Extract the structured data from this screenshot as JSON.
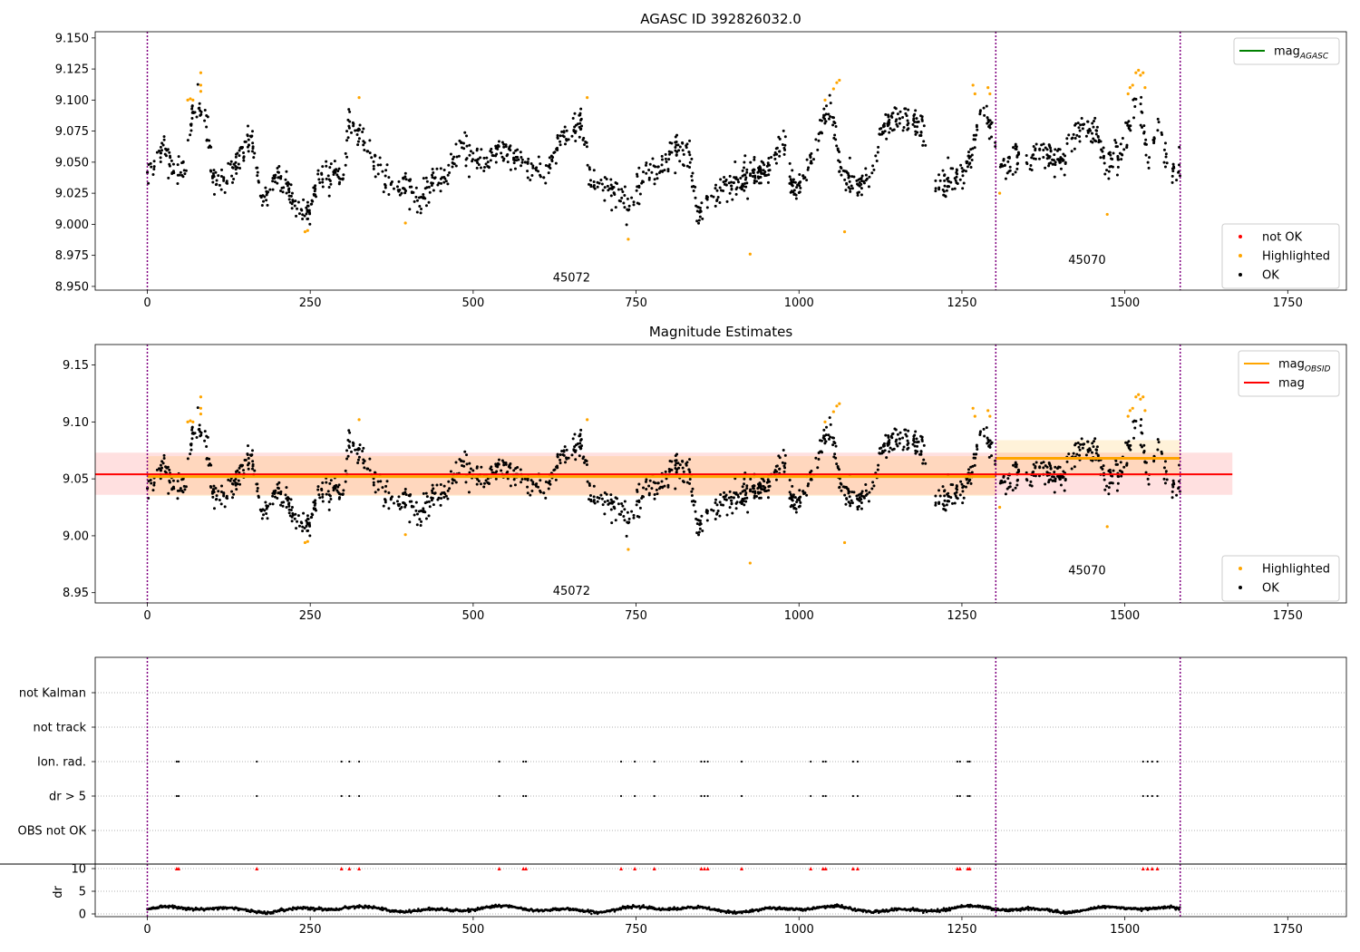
{
  "figure": {
    "panels": [
      {
        "id": "p1",
        "title": "AGASC ID 392826032.0",
        "xlim": [
          -80,
          1840
        ],
        "ylim": [
          8.947,
          9.155
        ],
        "yticks": [
          8.95,
          8.975,
          9.0,
          9.025,
          9.05,
          9.075,
          9.1,
          9.125,
          9.15
        ],
        "ytick_labels": [
          "8.950",
          "8.975",
          "9.000",
          "9.025",
          "9.050",
          "9.075",
          "9.100",
          "9.125",
          "9.150"
        ],
        "xticks": [
          0,
          250,
          500,
          750,
          1000,
          1250,
          1500,
          1750
        ],
        "xtick_labels": [
          "0",
          "250",
          "500",
          "750",
          "1000",
          "1250",
          "1500",
          "1750"
        ],
        "obsid_labels": [
          {
            "text": "45072",
            "x": 651,
            "y": 8.954
          },
          {
            "text": "45070",
            "x": 1442,
            "y": 8.968
          }
        ],
        "legend_top": {
          "entries": [
            {
              "label": "mag",
              "sub": "AGASC",
              "color": "#008000",
              "kind": "line"
            }
          ]
        },
        "legend_bottom": {
          "entries": [
            {
              "label": "not OK",
              "color": "#ff0000",
              "kind": "dot"
            },
            {
              "label": "Highlighted",
              "color": "#ffa500",
              "kind": "dot"
            },
            {
              "label": "OK",
              "color": "#000000",
              "kind": "dot"
            }
          ]
        }
      },
      {
        "id": "p2",
        "title": "Magnitude Estimates",
        "xlim": [
          -80,
          1840
        ],
        "ylim": [
          8.941,
          9.168
        ],
        "yticks": [
          8.95,
          9.0,
          9.05,
          9.1,
          9.15
        ],
        "ytick_labels": [
          "8.95",
          "9.00",
          "9.05",
          "9.10",
          "9.15"
        ],
        "xticks": [
          0,
          250,
          500,
          750,
          1000,
          1250,
          1500,
          1750
        ],
        "xtick_labels": [
          "0",
          "250",
          "500",
          "750",
          "1000",
          "1250",
          "1500",
          "1750"
        ],
        "obsid_labels": [
          {
            "text": "45072",
            "x": 651,
            "y": 8.948
          },
          {
            "text": "45070",
            "x": 1442,
            "y": 8.966
          }
        ],
        "legend_top": {
          "entries": [
            {
              "label": "mag",
              "sub": "OBSID",
              "color": "#ffa500",
              "kind": "line"
            },
            {
              "label": "mag",
              "sub": "",
              "color": "#ff0000",
              "kind": "line"
            }
          ]
        },
        "legend_bottom": {
          "entries": [
            {
              "label": "Highlighted",
              "color": "#ffa500",
              "kind": "dot"
            },
            {
              "label": "OK",
              "color": "#000000",
              "kind": "dot"
            }
          ]
        }
      },
      {
        "id": "p3",
        "xlim": [
          -80,
          1840
        ],
        "category_labels": [
          "not Kalman",
          "not track",
          "Ion. rad.",
          "dr > 5",
          "OBS not OK"
        ],
        "dr_ylabel": "dr",
        "dr_yticks": [
          0,
          5,
          10
        ],
        "dr_ytick_labels": [
          "0",
          "5",
          "10"
        ],
        "xticks": [
          0,
          250,
          500,
          750,
          1000,
          1250,
          1500,
          1750
        ],
        "xtick_labels": [
          "0",
          "250",
          "500",
          "750",
          "1000",
          "1250",
          "1500",
          "1750"
        ]
      }
    ]
  },
  "chart_data": {
    "type": "scatter",
    "obsid_boundaries": [
      0,
      1302,
      1585
    ],
    "colors": {
      "ok": "#000000",
      "highlighted": "#ffa500",
      "not_ok": "#ff0000",
      "boundary": "#800080",
      "agasc_line": "#008000",
      "mag_line": "#ff0000",
      "obsid_line": "#ffa500"
    },
    "segments": [
      {
        "obsid": "45072",
        "x_start": 0,
        "x_end": 1302
      },
      {
        "obsid": "45070",
        "x_start": 1302,
        "x_end": 1585
      }
    ],
    "mag_trend": [
      [
        0,
        9.036
      ],
      [
        15,
        9.048
      ],
      [
        25,
        9.066
      ],
      [
        40,
        9.041
      ],
      [
        60,
        9.046
      ],
      [
        70,
        9.095
      ],
      [
        90,
        9.087
      ],
      [
        100,
        9.04
      ],
      [
        120,
        9.035
      ],
      [
        140,
        9.055
      ],
      [
        160,
        9.072
      ],
      [
        175,
        9.02
      ],
      [
        200,
        9.04
      ],
      [
        230,
        9.015
      ],
      [
        245,
        9.008
      ],
      [
        265,
        9.038
      ],
      [
        300,
        9.043
      ],
      [
        310,
        9.078
      ],
      [
        330,
        9.075
      ],
      [
        350,
        9.045
      ],
      [
        380,
        9.028
      ],
      [
        400,
        9.033
      ],
      [
        415,
        9.015
      ],
      [
        440,
        9.035
      ],
      [
        460,
        9.038
      ],
      [
        480,
        9.067
      ],
      [
        500,
        9.052
      ],
      [
        520,
        9.047
      ],
      [
        540,
        9.063
      ],
      [
        570,
        9.052
      ],
      [
        600,
        9.045
      ],
      [
        610,
        9.036
      ],
      [
        630,
        9.066
      ],
      [
        665,
        9.085
      ],
      [
        680,
        9.037
      ],
      [
        700,
        9.03
      ],
      [
        720,
        9.024
      ],
      [
        740,
        9.012
      ],
      [
        760,
        9.04
      ],
      [
        790,
        9.048
      ],
      [
        810,
        9.06
      ],
      [
        830,
        9.055
      ],
      [
        845,
        9.013
      ],
      [
        880,
        9.028
      ],
      [
        920,
        9.038
      ],
      [
        950,
        9.042
      ],
      [
        975,
        9.07
      ],
      [
        990,
        9.025
      ],
      [
        1010,
        9.04
      ],
      [
        1030,
        9.075
      ],
      [
        1050,
        9.095
      ],
      [
        1065,
        9.04
      ],
      [
        1090,
        9.03
      ],
      [
        1110,
        9.04
      ],
      [
        1130,
        9.08
      ],
      [
        1160,
        9.085
      ],
      [
        1190,
        9.08
      ],
      [
        1210,
        9.03
      ],
      [
        1240,
        9.038
      ],
      [
        1260,
        9.045
      ],
      [
        1280,
        9.09
      ],
      [
        1300,
        9.072
      ],
      [
        1310,
        9.048
      ],
      [
        1340,
        9.055
      ],
      [
        1380,
        9.056
      ],
      [
        1400,
        9.05
      ],
      [
        1430,
        9.078
      ],
      [
        1455,
        9.075
      ],
      [
        1470,
        9.048
      ],
      [
        1490,
        9.055
      ],
      [
        1505,
        9.075
      ],
      [
        1520,
        9.105
      ],
      [
        1535,
        9.055
      ],
      [
        1550,
        9.078
      ],
      [
        1570,
        9.045
      ],
      [
        1585,
        9.05
      ]
    ],
    "noise_sd": 0.006,
    "n_points": 1540,
    "highlighted_points": [
      [
        62,
        9.1
      ],
      [
        66,
        9.101
      ],
      [
        70,
        9.1
      ],
      [
        82,
        9.122
      ],
      [
        82,
        9.112
      ],
      [
        82,
        9.107
      ],
      [
        242,
        8.994
      ],
      [
        246,
        8.995
      ],
      [
        325,
        9.102
      ],
      [
        396,
        9.001
      ],
      [
        675,
        9.102
      ],
      [
        738,
        8.988
      ],
      [
        925,
        8.976
      ],
      [
        1040,
        9.1
      ],
      [
        1053,
        9.109
      ],
      [
        1058,
        9.114
      ],
      [
        1062,
        9.116
      ],
      [
        1070,
        8.994
      ],
      [
        1267,
        9.112
      ],
      [
        1270,
        9.105
      ],
      [
        1290,
        9.11
      ],
      [
        1293,
        9.105
      ],
      [
        1308,
        9.025
      ],
      [
        1473,
        9.008
      ],
      [
        1505,
        9.105
      ],
      [
        1508,
        9.11
      ],
      [
        1512,
        9.112
      ],
      [
        1517,
        9.122
      ],
      [
        1521,
        9.124
      ],
      [
        1524,
        9.12
      ],
      [
        1528,
        9.122
      ],
      [
        1531,
        9.11
      ]
    ],
    "mag_agasc": null,
    "mag": {
      "value": 9.054,
      "band": [
        9.036,
        9.073
      ],
      "x_range": [
        -80,
        1665
      ]
    },
    "mag_obsid": [
      {
        "value": 9.052,
        "band": [
          9.035,
          9.07
        ],
        "x_range": [
          0,
          1302
        ]
      },
      {
        "value": 9.068,
        "band": [
          9.052,
          9.084
        ],
        "x_range": [
          1302,
          1585
        ]
      }
    ],
    "flag_x_positions": [
      45,
      48,
      168,
      298,
      310,
      325,
      540,
      577,
      581,
      727,
      748,
      778,
      850,
      855,
      860,
      912,
      1018,
      1037,
      1041,
      1083,
      1090,
      1243,
      1247,
      1259,
      1262,
      1528,
      1535,
      1542,
      1550
    ],
    "flag_categories": [
      "Ion. rad.",
      "dr > 5"
    ],
    "dr_clip": 10,
    "dr_noise": [
      0.3,
      1.8
    ]
  }
}
